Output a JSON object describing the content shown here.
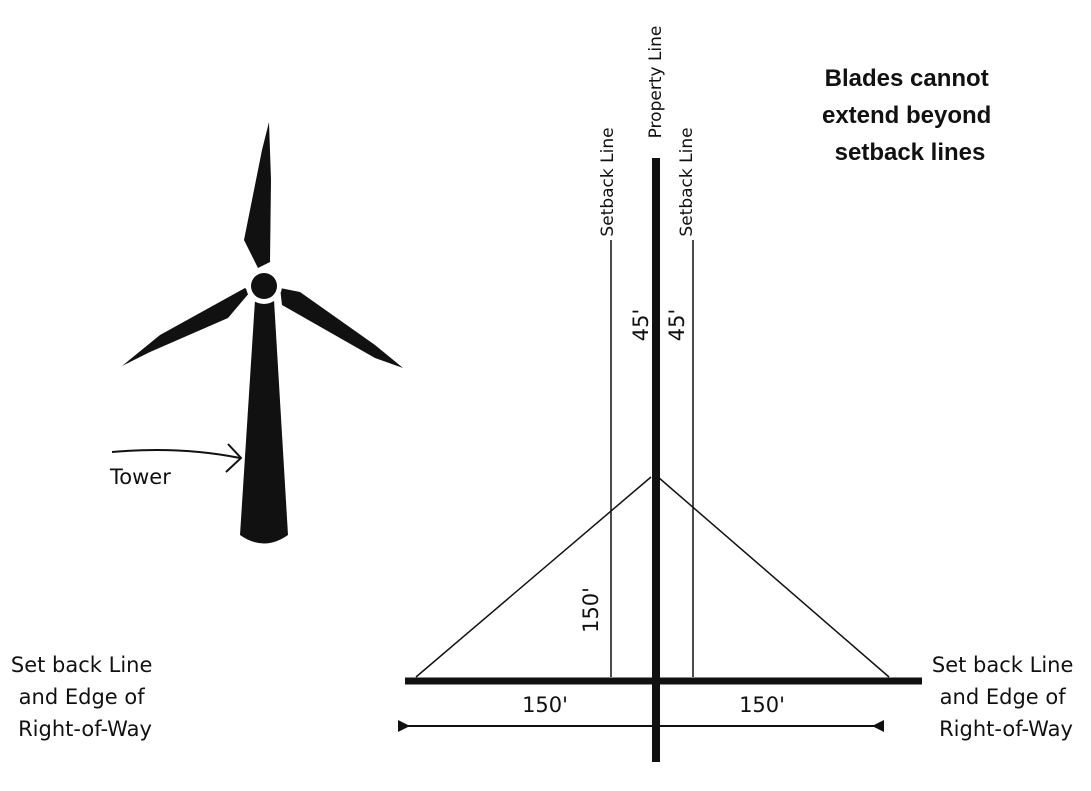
{
  "property_line": "Property Line",
  "setback_left": "Setback Line",
  "setback_right": "Setback Line",
  "note": [
    "Blades cannot",
    "extend beyond",
    "setback lines"
  ],
  "setback_left_distance": "45'",
  "setback_right_distance": "45'",
  "height_label": "150'",
  "left_distance": "150'",
  "right_distance": "150'",
  "tower_label": "Tower",
  "left_edge_label": [
    "Set back Line",
    "and Edge of",
    "Right-of-Way"
  ],
  "right_edge_label": [
    "Set back Line",
    "and Edge of",
    "Right-of-Way"
  ]
}
